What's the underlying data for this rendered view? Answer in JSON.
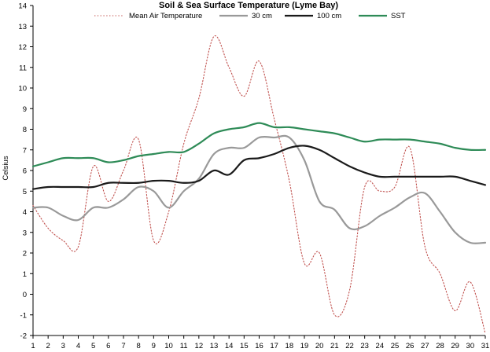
{
  "chart_data": {
    "type": "line",
    "title": "Soil & Sea Surface Temperature (Lyme Bay)",
    "xlabel": "",
    "ylabel": "Celsius",
    "ylim": [
      -2,
      14
    ],
    "xlim": [
      1,
      31
    ],
    "grid": false,
    "legend": "top",
    "x_ticks": [
      1,
      2,
      3,
      4,
      5,
      6,
      7,
      8,
      9,
      10,
      11,
      12,
      13,
      14,
      15,
      16,
      17,
      18,
      19,
      20,
      21,
      22,
      23,
      24,
      25,
      26,
      27,
      28,
      29,
      30,
      31
    ],
    "y_ticks": [
      -2,
      -1,
      0,
      1,
      2,
      3,
      4,
      5,
      6,
      7,
      8,
      9,
      10,
      11,
      12,
      13,
      14
    ],
    "series": [
      {
        "name": "Mean Air Temperature",
        "color": "#c0504d",
        "style": "dotted",
        "x": [
          1,
          2,
          3,
          4,
          5,
          6,
          7,
          8,
          9,
          10,
          11,
          12,
          13,
          14,
          15,
          16,
          17,
          18,
          19,
          20,
          21,
          22,
          23,
          24,
          25,
          26,
          27,
          28,
          29,
          30,
          31
        ],
        "values": [
          4.3,
          3.2,
          2.6,
          2.3,
          6.2,
          4.5,
          6.0,
          7.5,
          2.6,
          4.0,
          7.3,
          9.5,
          12.5,
          11.0,
          9.6,
          11.3,
          8.5,
          5.5,
          1.5,
          2.0,
          -1.0,
          0.2,
          5.2,
          5.0,
          5.2,
          7.1,
          2.3,
          1.0,
          -0.8,
          0.6,
          -1.9
        ]
      },
      {
        "name": "30 cm",
        "color": "#999999",
        "style": "solid",
        "x": [
          1,
          2,
          3,
          4,
          5,
          6,
          7,
          8,
          9,
          10,
          11,
          12,
          13,
          14,
          15,
          16,
          17,
          18,
          19,
          20,
          21,
          22,
          23,
          24,
          25,
          26,
          27,
          28,
          29,
          30,
          31
        ],
        "values": [
          4.2,
          4.2,
          3.8,
          3.6,
          4.2,
          4.2,
          4.6,
          5.2,
          5.0,
          4.2,
          5.0,
          5.6,
          6.8,
          7.1,
          7.1,
          7.6,
          7.6,
          7.6,
          6.5,
          4.5,
          4.1,
          3.2,
          3.3,
          3.8,
          4.2,
          4.7,
          4.9,
          4.0,
          3.0,
          2.5,
          2.5
        ]
      },
      {
        "name": "100 cm",
        "color": "#1a1a1a",
        "style": "solid",
        "x": [
          1,
          2,
          3,
          4,
          5,
          6,
          7,
          8,
          9,
          10,
          11,
          12,
          13,
          14,
          15,
          16,
          17,
          18,
          19,
          20,
          21,
          22,
          23,
          24,
          25,
          26,
          27,
          28,
          29,
          30,
          31
        ],
        "values": [
          5.1,
          5.2,
          5.2,
          5.2,
          5.2,
          5.4,
          5.4,
          5.4,
          5.5,
          5.5,
          5.4,
          5.5,
          6.0,
          5.8,
          6.5,
          6.6,
          6.8,
          7.1,
          7.2,
          7.0,
          6.6,
          6.2,
          5.9,
          5.7,
          5.7,
          5.7,
          5.7,
          5.7,
          5.7,
          5.5,
          5.3
        ]
      },
      {
        "name": "SST",
        "color": "#2e8b57",
        "style": "solid",
        "x": [
          1,
          2,
          3,
          4,
          5,
          6,
          7,
          8,
          9,
          10,
          11,
          12,
          13,
          14,
          15,
          16,
          17,
          18,
          19,
          20,
          21,
          22,
          23,
          24,
          25,
          26,
          27,
          28,
          29,
          30,
          31
        ],
        "values": [
          6.2,
          6.4,
          6.6,
          6.6,
          6.6,
          6.4,
          6.5,
          6.7,
          6.8,
          6.9,
          6.9,
          7.3,
          7.8,
          8.0,
          8.1,
          8.3,
          8.1,
          8.1,
          8.0,
          7.9,
          7.8,
          7.6,
          7.4,
          7.5,
          7.5,
          7.5,
          7.4,
          7.3,
          7.1,
          7.0,
          7.0
        ]
      }
    ]
  }
}
